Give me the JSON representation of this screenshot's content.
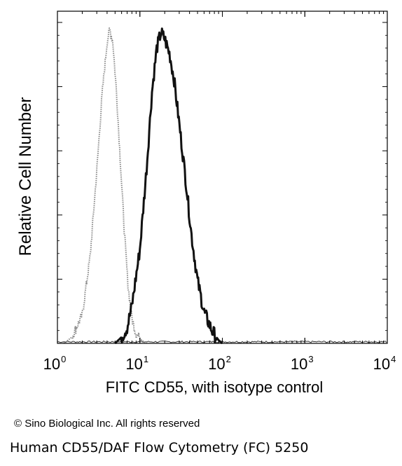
{
  "chart_data": {
    "type": "area",
    "xlabel": "FITC CD55, with isotype control",
    "ylabel": "Relative Cell Number",
    "x_scale": "log",
    "xlim": [
      1,
      10000
    ],
    "x_ticks": [
      {
        "base": "10",
        "exp": "0"
      },
      {
        "base": "10",
        "exp": "1"
      },
      {
        "base": "10",
        "exp": "2"
      },
      {
        "base": "10",
        "exp": "3"
      },
      {
        "base": "10",
        "exp": "4"
      }
    ],
    "ylim": [
      0,
      100
    ],
    "y_tick_labels_shown": false,
    "grid": false,
    "series": [
      {
        "style": "dotted-light",
        "color": "#8a8a8a",
        "points": [
          [
            1.2,
            0
          ],
          [
            1.5,
            2
          ],
          [
            2.0,
            9
          ],
          [
            2.5,
            28
          ],
          [
            3.0,
            55
          ],
          [
            3.5,
            80
          ],
          [
            4.0,
            96
          ],
          [
            4.3,
            100
          ],
          [
            4.7,
            96
          ],
          [
            5.2,
            80
          ],
          [
            5.8,
            58
          ],
          [
            6.5,
            35
          ],
          [
            7.2,
            18
          ],
          [
            8.0,
            8
          ],
          [
            9.0,
            3
          ],
          [
            10.5,
            1
          ],
          [
            12,
            0
          ]
        ]
      },
      {
        "style": "solid-dark",
        "color": "#111111",
        "points": [
          [
            5,
            0
          ],
          [
            6,
            2
          ],
          [
            7,
            5
          ],
          [
            8,
            12
          ],
          [
            10,
            30
          ],
          [
            12,
            55
          ],
          [
            14,
            80
          ],
          [
            16,
            94
          ],
          [
            18,
            99
          ],
          [
            20,
            97
          ],
          [
            23,
            92
          ],
          [
            26,
            84
          ],
          [
            30,
            70
          ],
          [
            36,
            52
          ],
          [
            42,
            35
          ],
          [
            50,
            20
          ],
          [
            60,
            10
          ],
          [
            75,
            4
          ],
          [
            90,
            1
          ],
          [
            100,
            0
          ]
        ]
      }
    ]
  },
  "footer": {
    "copyright": "© Sino Biological Inc. All rights reserved",
    "caption": "Human CD55/DAF Flow Cytometry (FC) 5250"
  }
}
